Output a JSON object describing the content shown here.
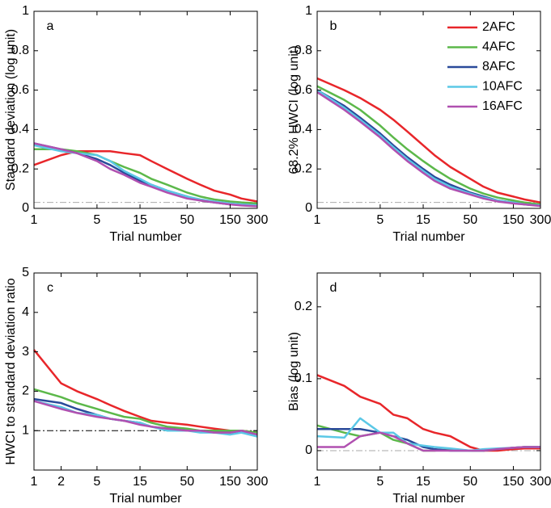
{
  "chart_data": [
    {
      "type": "line",
      "panel_label": "a",
      "xlabel": "Trial number",
      "ylabel": "Standard deviation (log unit)",
      "xscale": "log",
      "xlim": [
        1,
        300
      ],
      "ylim": [
        0,
        1
      ],
      "xticks": [
        1,
        5,
        15,
        50,
        150,
        300
      ],
      "yticks": [
        0,
        0.2,
        0.4,
        0.6,
        0.8,
        1
      ],
      "reference_line": {
        "value": 0.03,
        "color": "#aaaaaa"
      },
      "x": [
        1,
        2,
        3,
        5,
        7,
        10,
        15,
        20,
        30,
        50,
        70,
        100,
        150,
        200,
        300
      ],
      "series": [
        {
          "color": "#e8262a",
          "values": [
            0.22,
            0.27,
            0.29,
            0.29,
            0.29,
            0.28,
            0.27,
            0.24,
            0.2,
            0.15,
            0.12,
            0.09,
            0.07,
            0.05,
            0.035
          ]
        },
        {
          "color": "#5cb84a",
          "values": [
            0.3,
            0.3,
            0.29,
            0.27,
            0.24,
            0.21,
            0.18,
            0.15,
            0.12,
            0.08,
            0.06,
            0.045,
            0.035,
            0.03,
            0.025
          ]
        },
        {
          "color": "#2a4a9a",
          "values": [
            0.33,
            0.3,
            0.28,
            0.25,
            0.22,
            0.18,
            0.14,
            0.12,
            0.09,
            0.06,
            0.04,
            0.03,
            0.02,
            0.02,
            0.015
          ]
        },
        {
          "color": "#5bc8e6",
          "values": [
            0.32,
            0.29,
            0.28,
            0.27,
            0.24,
            0.19,
            0.15,
            0.12,
            0.09,
            0.06,
            0.045,
            0.035,
            0.025,
            0.02,
            0.015
          ]
        },
        {
          "color": "#b050b0",
          "values": [
            0.33,
            0.3,
            0.28,
            0.24,
            0.2,
            0.17,
            0.13,
            0.11,
            0.08,
            0.05,
            0.04,
            0.03,
            0.02,
            0.015,
            0.01
          ]
        }
      ]
    },
    {
      "type": "line",
      "panel_label": "b",
      "xlabel": "Trial number",
      "ylabel": "68.2% HWCI (log unit)",
      "xscale": "log",
      "xlim": [
        1,
        300
      ],
      "ylim": [
        0,
        1
      ],
      "xticks": [
        1,
        5,
        15,
        50,
        150,
        300
      ],
      "yticks": [
        0,
        0.2,
        0.4,
        0.6,
        0.8,
        1
      ],
      "reference_line": {
        "value": 0.03,
        "color": "#aaaaaa"
      },
      "legend": "upper right",
      "x": [
        1,
        2,
        3,
        5,
        7,
        10,
        15,
        20,
        30,
        50,
        70,
        100,
        150,
        200,
        300
      ],
      "series": [
        {
          "name": "2AFC",
          "color": "#e8262a",
          "values": [
            0.66,
            0.6,
            0.56,
            0.5,
            0.45,
            0.39,
            0.32,
            0.27,
            0.21,
            0.15,
            0.11,
            0.08,
            0.06,
            0.045,
            0.03
          ]
        },
        {
          "name": "4AFC",
          "color": "#5cb84a",
          "values": [
            0.62,
            0.55,
            0.5,
            0.42,
            0.36,
            0.3,
            0.24,
            0.2,
            0.15,
            0.1,
            0.075,
            0.055,
            0.04,
            0.03,
            0.02
          ]
        },
        {
          "name": "8AFC",
          "color": "#2a4a9a",
          "values": [
            0.6,
            0.52,
            0.46,
            0.38,
            0.32,
            0.26,
            0.2,
            0.16,
            0.12,
            0.08,
            0.06,
            0.04,
            0.03,
            0.02,
            0.015
          ]
        },
        {
          "name": "10AFC",
          "color": "#5bc8e6",
          "values": [
            0.6,
            0.51,
            0.45,
            0.37,
            0.31,
            0.25,
            0.19,
            0.15,
            0.11,
            0.075,
            0.055,
            0.04,
            0.03,
            0.02,
            0.015
          ]
        },
        {
          "name": "16AFC",
          "color": "#b050b0",
          "values": [
            0.59,
            0.5,
            0.44,
            0.36,
            0.3,
            0.24,
            0.18,
            0.14,
            0.1,
            0.07,
            0.05,
            0.035,
            0.025,
            0.02,
            0.012
          ]
        }
      ]
    },
    {
      "type": "line",
      "panel_label": "c",
      "xlabel": "Trial number",
      "ylabel": "HWCI to standard deviation ratio",
      "xscale": "log",
      "xlim": [
        1,
        300
      ],
      "ylim": [
        0,
        5
      ],
      "xticks": [
        1,
        2,
        5,
        15,
        50,
        150,
        300
      ],
      "yticks": [
        1,
        2,
        3,
        4,
        5
      ],
      "reference_line": {
        "value": 1,
        "color": "#000000"
      },
      "x": [
        1,
        2,
        3,
        5,
        7,
        10,
        15,
        20,
        30,
        50,
        70,
        100,
        150,
        200,
        300
      ],
      "series": [
        {
          "color": "#e8262a",
          "values": [
            3.05,
            2.2,
            2.0,
            1.8,
            1.65,
            1.5,
            1.35,
            1.25,
            1.2,
            1.15,
            1.1,
            1.05,
            1.0,
            1.0,
            0.95
          ]
        },
        {
          "color": "#5cb84a",
          "values": [
            2.05,
            1.85,
            1.7,
            1.55,
            1.45,
            1.35,
            1.3,
            1.2,
            1.1,
            1.05,
            1.0,
            1.0,
            1.0,
            1.0,
            0.95
          ]
        },
        {
          "color": "#2a4a9a",
          "values": [
            1.8,
            1.7,
            1.55,
            1.4,
            1.3,
            1.25,
            1.2,
            1.1,
            1.05,
            1.0,
            1.0,
            0.95,
            0.95,
            0.95,
            0.9
          ]
        },
        {
          "color": "#5bc8e6",
          "values": [
            1.75,
            1.6,
            1.45,
            1.4,
            1.3,
            1.25,
            1.2,
            1.1,
            1.0,
            1.0,
            0.95,
            0.95,
            0.9,
            0.95,
            0.85
          ]
        },
        {
          "color": "#b050b0",
          "values": [
            1.75,
            1.55,
            1.45,
            1.35,
            1.3,
            1.25,
            1.15,
            1.1,
            1.05,
            1.0,
            1.0,
            0.95,
            0.95,
            1.0,
            0.9
          ]
        }
      ]
    },
    {
      "type": "line",
      "panel_label": "d",
      "xlabel": "Trial number",
      "ylabel": "Bias (log unit)",
      "xscale": "log",
      "xlim": [
        1,
        300
      ],
      "ylim": [
        -0.027,
        0.247
      ],
      "xticks": [
        1,
        5,
        15,
        50,
        150,
        300
      ],
      "yticks": [
        0,
        0.1,
        0.2
      ],
      "reference_line": {
        "value": 0,
        "color": "#aaaaaa"
      },
      "x": [
        1,
        2,
        3,
        5,
        7,
        10,
        15,
        20,
        30,
        50,
        70,
        100,
        150,
        200,
        300
      ],
      "series": [
        {
          "color": "#e8262a",
          "values": [
            0.105,
            0.09,
            0.075,
            0.065,
            0.05,
            0.045,
            0.03,
            0.025,
            0.02,
            0.005,
            0.0,
            0.0,
            0.002,
            0.003,
            0.003
          ]
        },
        {
          "color": "#5cb84a",
          "values": [
            0.035,
            0.025,
            0.02,
            0.025,
            0.015,
            0.01,
            0.0,
            0.0,
            0.002,
            0.0,
            0.0,
            0.002,
            0.004,
            0.005,
            0.005
          ]
        },
        {
          "color": "#2a4a9a",
          "values": [
            0.03,
            0.03,
            0.03,
            0.025,
            0.02,
            0.015,
            0.005,
            0.002,
            0.0,
            0.0,
            0.0,
            0.002,
            0.004,
            0.005,
            0.005
          ]
        },
        {
          "color": "#5bc8e6",
          "values": [
            0.02,
            0.018,
            0.045,
            0.025,
            0.025,
            0.01,
            0.007,
            0.005,
            0.003,
            0.0,
            0.002,
            0.003,
            0.004,
            0.005,
            0.005
          ]
        },
        {
          "color": "#b050b0",
          "values": [
            0.005,
            0.005,
            0.02,
            0.025,
            0.02,
            0.01,
            0.0,
            0.0,
            0.0,
            0.0,
            0.0,
            0.002,
            0.004,
            0.005,
            0.005
          ]
        }
      ]
    }
  ]
}
